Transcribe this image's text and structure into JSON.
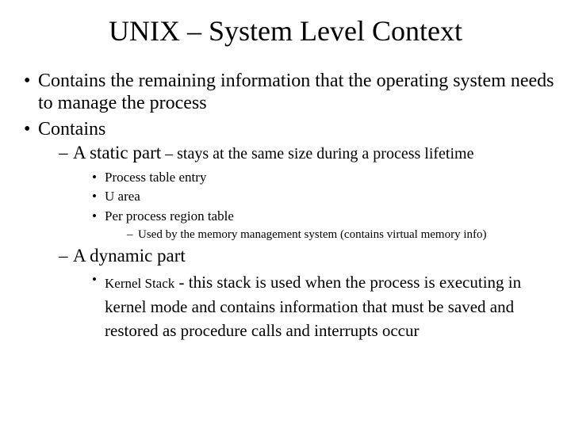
{
  "title": "UNIX – System Level Context",
  "b1": "Contains the remaining information that the operating system needs to manage the process",
  "b2": "Contains",
  "s1_main": "A static part",
  "s1_suffix": " – stays at the same size during a process lifetime",
  "s1_i1": "Process table entry",
  "s1_i2": "U area",
  "s1_i3": "Per process region table",
  "s1_i3_sub": "Used by the memory management system (contains virtual memory info)",
  "s2_main": "A dynamic part",
  "s2_i1_lead": "Kernel Stack",
  "s2_i1_rest": " - this stack is used when the process is executing in kernel mode and contains information that must be saved and restored as procedure calls and interrupts occur"
}
